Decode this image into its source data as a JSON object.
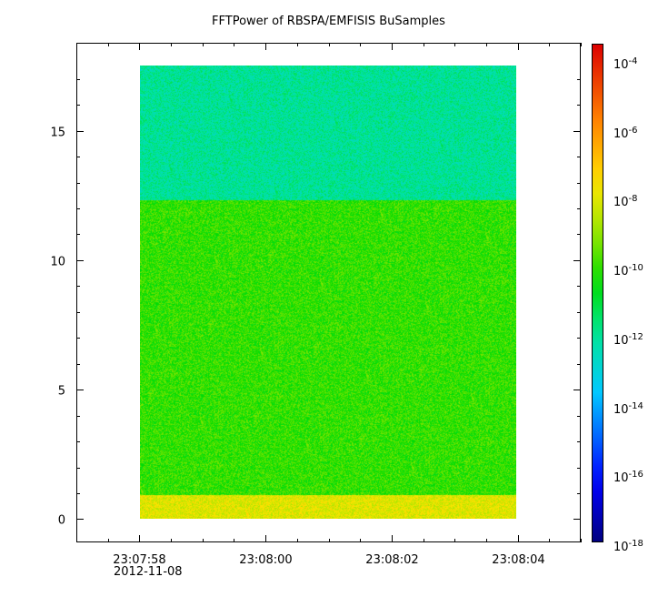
{
  "chart_data": {
    "type": "heatmap",
    "title": "FFTPower of RBSPA/EMFISIS  BuSamples",
    "xlabel": "",
    "ylabel": "",
    "x_tick_labels": [
      "23:07:58",
      "23:08:00",
      "23:08:02",
      "23:08:04"
    ],
    "x_date_label": "2012-11-08",
    "x_range": [
      "23:07:57.0",
      "23:08:05.0"
    ],
    "y_tick_labels": [
      "0",
      "5",
      "10",
      "15"
    ],
    "y_ticks": [
      0,
      5,
      10,
      15
    ],
    "ylim": [
      -0.9,
      18.4
    ],
    "data_extent": {
      "x": [
        "23:07:58.0",
        "23:08:04.0"
      ],
      "y": [
        0,
        17.5
      ]
    },
    "colorbar": {
      "scale": "log",
      "range": [
        1e-18,
        0.0003
      ],
      "colormap": "rainbow",
      "tick_labels": [
        {
          "base": "10",
          "exp": "-4"
        },
        {
          "base": "10",
          "exp": "-6"
        },
        {
          "base": "10",
          "exp": "-8"
        },
        {
          "base": "10",
          "exp": "-10"
        },
        {
          "base": "10",
          "exp": "-12"
        },
        {
          "base": "10",
          "exp": "-14"
        },
        {
          "base": "10",
          "exp": "-16"
        },
        {
          "base": "10",
          "exp": "-18"
        }
      ]
    },
    "features": [
      {
        "y_range": [
          0,
          0.9
        ],
        "approx_power": 1e-08,
        "description": "band"
      },
      {
        "y_range": [
          1.0,
          2.0
        ],
        "x_range": [
          "23:07:58.0",
          "23:07:59.0"
        ],
        "approx_power": 3e-09
      },
      {
        "y_range": [
          0.9,
          12.3
        ],
        "approx_power": 1e-10
      },
      {
        "y_range": [
          12.3,
          17.5
        ],
        "approx_power": 1e-12
      }
    ],
    "grid": false
  }
}
